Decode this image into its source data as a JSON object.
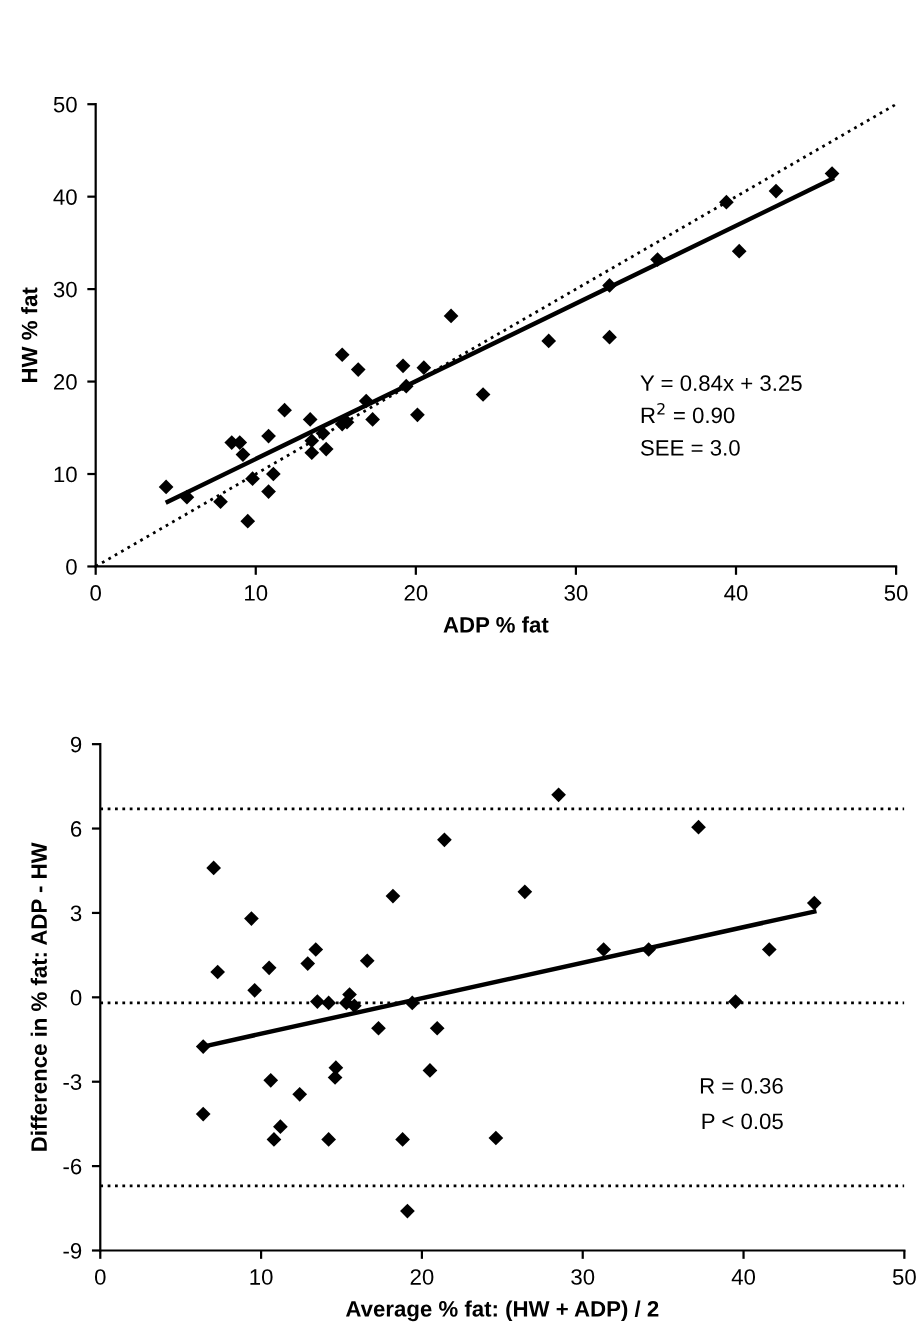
{
  "chart_data": [
    {
      "type": "scatter",
      "xlabel": "ADP % fat",
      "ylabel": "HW % fat",
      "xlim": [
        0,
        50
      ],
      "ylim": [
        0,
        50
      ],
      "xticks": [
        0,
        10,
        20,
        30,
        40,
        50
      ],
      "yticks": [
        0,
        10,
        20,
        30,
        40,
        50
      ],
      "grid": false,
      "legend": false,
      "annotations": [
        "Y = 0.84x + 3.25",
        "R$^{2}$ = 0.90",
        "SEE = 3.0"
      ],
      "series": [
        {
          "color": "#000000",
          "marker": "diamond",
          "x": [
            4.4,
            5.7,
            7.8,
            8.5,
            9.0,
            9.2,
            9.5,
            9.8,
            10.8,
            10.8,
            11.1,
            11.8,
            13.4,
            13.5,
            13.5,
            14.2,
            14.4,
            15.4,
            15.4,
            15.7,
            16.4,
            16.9,
            17.3,
            19.2,
            19.4,
            20.1,
            20.5,
            22.2,
            24.2,
            28.3,
            32.1,
            32.1,
            35.1,
            39.4,
            40.2,
            42.5,
            46.0
          ],
          "values": [
            8.6,
            7.5,
            7.0,
            13.4,
            13.4,
            12.1,
            4.9,
            9.5,
            14.1,
            8.1,
            10.0,
            16.9,
            15.9,
            13.6,
            12.3,
            14.4,
            12.7,
            22.9,
            15.4,
            15.6,
            21.3,
            17.9,
            15.9,
            21.7,
            19.5,
            16.4,
            21.5,
            27.1,
            18.6,
            24.4,
            24.8,
            30.4,
            33.2,
            39.4,
            34.1,
            40.6,
            42.5
          ]
        },
        {
          "type": "line",
          "color": "#000000",
          "line_style": "solid",
          "x": [
            4.5,
            46.0
          ],
          "values": [
            7.0,
            41.9
          ]
        },
        {
          "type": "line",
          "color": "#000000",
          "line_style": "dotted",
          "x": [
            0,
            50
          ],
          "values": [
            0,
            50
          ]
        }
      ]
    },
    {
      "type": "scatter",
      "xlabel": "Average % fat: (HW + ADP) / 2",
      "ylabel": "Difference in % fat: ADP - HW",
      "xlim": [
        0,
        50
      ],
      "ylim": [
        -9,
        9
      ],
      "xticks": [
        0,
        10,
        20,
        30,
        40,
        50
      ],
      "yticks": [
        -9,
        -6,
        -3,
        0,
        3,
        6,
        9
      ],
      "grid": false,
      "legend": false,
      "annotations": [
        "R = 0.36",
        "P < 0.05"
      ],
      "ref_lines": [
        {
          "axis": "y",
          "value": 6.7,
          "line_style": "dotted",
          "color": "#000000"
        },
        {
          "axis": "y",
          "value": -0.2,
          "line_style": "dotted",
          "color": "#000000"
        },
        {
          "axis": "y",
          "value": -6.7,
          "line_style": "dotted",
          "color": "#000000"
        }
      ],
      "series": [
        {
          "color": "#000000",
          "marker": "diamond",
          "x": [
            7.05,
            9.4,
            18.2,
            21.4,
            26.4,
            28.5,
            37.2,
            44.4,
            7.3,
            10.5,
            9.6,
            12.9,
            13.4,
            13.5,
            14.2,
            16.6,
            15.3,
            15.5,
            15.8,
            19.4,
            17.3,
            20.95,
            31.3,
            34.1,
            41.6,
            39.5,
            6.4,
            14.65,
            14.6,
            10.6,
            20.5,
            12.4,
            6.4,
            11.2,
            10.8,
            14.2,
            18.8,
            24.6,
            19.1
          ],
          "values": [
            4.6,
            2.8,
            3.6,
            5.6,
            3.75,
            7.2,
            6.05,
            3.35,
            0.9,
            1.05,
            0.25,
            1.2,
            1.7,
            -0.15,
            -0.2,
            1.3,
            -0.2,
            0.1,
            -0.3,
            -0.2,
            -1.1,
            -1.1,
            1.7,
            1.7,
            1.7,
            -0.15,
            -1.75,
            -2.5,
            -2.85,
            -2.95,
            -2.6,
            -3.45,
            -4.15,
            -4.6,
            -5.05,
            -5.05,
            -5.05,
            -5.0,
            -7.6
          ]
        },
        {
          "type": "line",
          "color": "#000000",
          "line_style": "solid",
          "x": [
            6.4,
            44.4
          ],
          "values": [
            -1.75,
            3.05
          ]
        }
      ]
    }
  ]
}
